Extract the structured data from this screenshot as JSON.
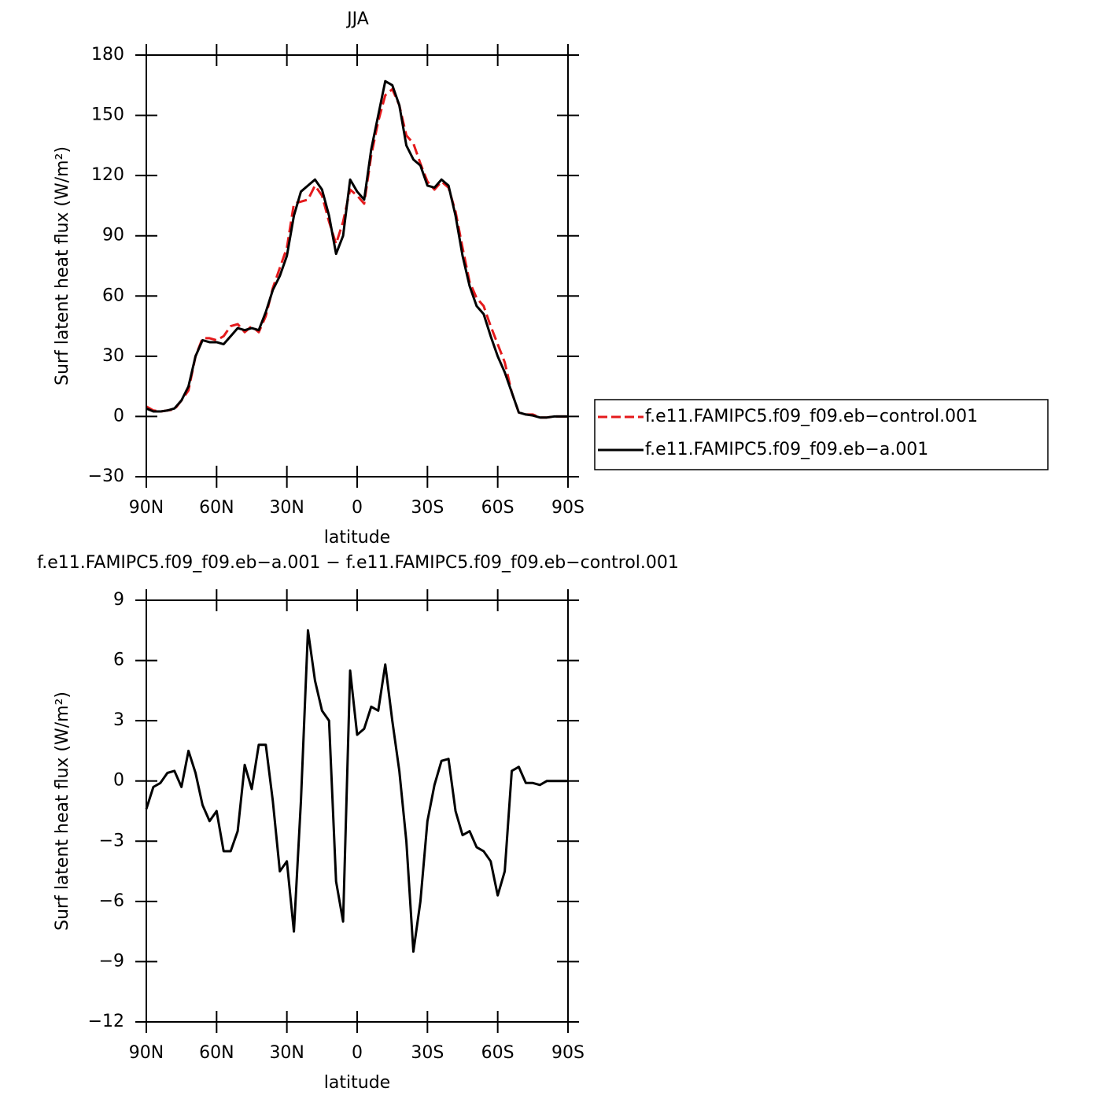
{
  "chart_data": [
    {
      "type": "line",
      "title": "JJA",
      "xlabel": "latitude",
      "ylabel": "Surf latent heat flux (W/m²)",
      "x": [
        90,
        87,
        84,
        81,
        78,
        75,
        72,
        69,
        66,
        63,
        60,
        57,
        54,
        51,
        48,
        45,
        42,
        39,
        36,
        33,
        30,
        27,
        24,
        21,
        18,
        15,
        12,
        9,
        6,
        3,
        0,
        -3,
        -6,
        -9,
        -12,
        -15,
        -18,
        -21,
        -24,
        -27,
        -30,
        -33,
        -36,
        -39,
        -42,
        -45,
        -48,
        -51,
        -54,
        -57,
        -60,
        -63,
        -66,
        -69,
        -72,
        -75,
        -78,
        -81,
        -84,
        -87,
        -90
      ],
      "xlim": [
        90,
        -90
      ],
      "xticks": [
        {
          "value": 90,
          "label": "90N"
        },
        {
          "value": 60,
          "label": "60N"
        },
        {
          "value": 30,
          "label": "30N"
        },
        0,
        {
          "value": -30,
          "label": "30S"
        },
        {
          "value": -60,
          "label": "60S"
        },
        {
          "value": -90,
          "label": "90S"
        }
      ],
      "ylim": [
        -30,
        180
      ],
      "yticks": [
        {
          "value": -30,
          "label": "−30"
        },
        0,
        30,
        60,
        90,
        120,
        150,
        180
      ],
      "legend": "right",
      "series": [
        {
          "name": "f.e11.FAMIPC5.f09_f09.eb−control.001",
          "color": "#e41a1c",
          "dashed": true,
          "values": [
            5,
            3,
            2.5,
            3,
            3.5,
            8,
            13,
            30,
            39,
            39,
            38,
            40,
            45,
            46,
            42,
            45,
            42,
            50,
            64,
            74,
            84,
            106,
            107,
            108,
            115,
            110,
            97,
            86,
            97,
            113,
            110,
            106,
            130,
            147,
            160,
            163,
            155,
            140,
            136,
            126,
            117,
            113,
            117,
            114,
            102,
            84,
            67,
            59,
            55,
            45,
            36,
            27,
            12,
            2,
            1,
            1,
            -0.5,
            -0.5,
            0,
            0,
            0
          ]
        },
        {
          "name": "f.e11.FAMIPC5.f09_f09.eb−a.001",
          "color": "#000000",
          "dashed": false,
          "values": [
            4,
            2.5,
            2.5,
            3,
            4,
            8,
            15,
            30,
            38,
            37,
            37,
            36,
            40,
            44,
            43,
            44,
            43,
            52,
            63,
            70,
            80,
            100,
            112,
            115,
            118,
            113,
            100,
            81,
            90,
            118,
            112,
            108,
            133,
            150,
            167,
            165,
            155,
            135,
            128,
            125,
            115,
            114,
            118,
            115,
            100,
            80,
            65,
            55,
            51,
            40,
            30,
            22,
            12,
            2,
            1,
            0.5,
            -0.5,
            -0.5,
            0,
            0,
            0
          ]
        }
      ]
    },
    {
      "type": "line",
      "title": "f.e11.FAMIPC5.f09_f09.eb−a.001 − f.e11.FAMIPC5.f09_f09.eb−control.001",
      "xlabel": "latitude",
      "ylabel": "Surf latent heat flux (W/m²)",
      "x": [
        90,
        87,
        84,
        81,
        78,
        75,
        72,
        69,
        66,
        63,
        60,
        57,
        54,
        51,
        48,
        45,
        42,
        39,
        36,
        33,
        30,
        27,
        24,
        21,
        18,
        15,
        12,
        9,
        6,
        3,
        0,
        -3,
        -6,
        -9,
        -12,
        -15,
        -18,
        -21,
        -24,
        -27,
        -30,
        -33,
        -36,
        -39,
        -42,
        -45,
        -48,
        -51,
        -54,
        -57,
        -60,
        -63,
        -66,
        -69,
        -72,
        -75,
        -78,
        -81,
        -84,
        -87,
        -90
      ],
      "xlim": [
        90,
        -90
      ],
      "xticks": [
        {
          "value": 90,
          "label": "90N"
        },
        {
          "value": 60,
          "label": "60N"
        },
        {
          "value": 30,
          "label": "30N"
        },
        0,
        {
          "value": -30,
          "label": "30S"
        },
        {
          "value": -60,
          "label": "60S"
        },
        {
          "value": -90,
          "label": "90S"
        }
      ],
      "ylim": [
        -12,
        9
      ],
      "yticks": [
        {
          "value": -12,
          "label": "−12"
        },
        {
          "value": -9,
          "label": "−9"
        },
        {
          "value": -6,
          "label": "−6"
        },
        {
          "value": -3,
          "label": "−3"
        },
        0,
        3,
        6,
        9
      ],
      "color": "#000000",
      "values": [
        -1.4,
        -0.3,
        -0.1,
        0.4,
        0.5,
        -0.3,
        1.5,
        0.4,
        -1.2,
        -2,
        -1.5,
        -3.5,
        -3.5,
        -2.5,
        0.8,
        -0.4,
        1.8,
        1.8,
        -1,
        -4.5,
        -4,
        -7.5,
        -1,
        7.5,
        5,
        3.5,
        3,
        -5,
        -7,
        5.5,
        2.3,
        2.6,
        3.7,
        3.5,
        5.8,
        3,
        0.5,
        -3,
        -8.5,
        -6,
        -2,
        -0.2,
        1,
        1.1,
        -1.5,
        -2.7,
        -2.5,
        -3.3,
        -3.5,
        -4,
        -5.7,
        -4.5,
        0.5,
        0.7,
        -0.1,
        -0.1,
        -0.2,
        0,
        0,
        0,
        0
      ]
    }
  ]
}
